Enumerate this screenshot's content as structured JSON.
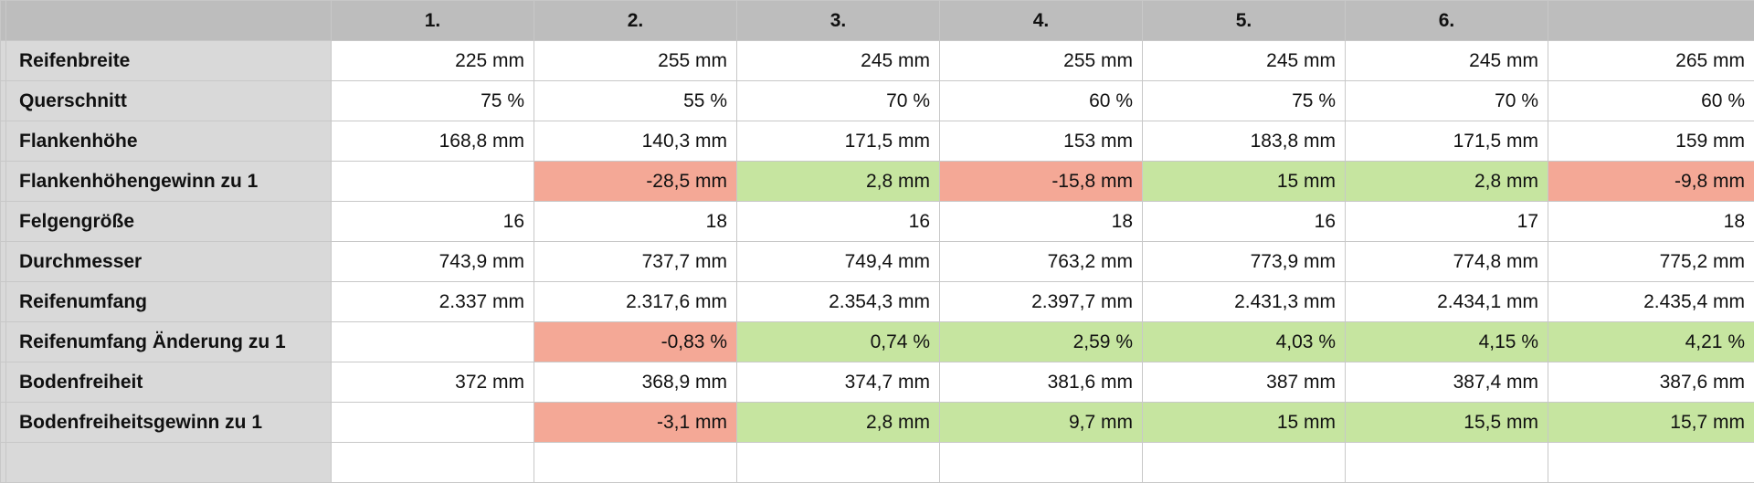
{
  "headers": [
    "",
    "1.",
    "2.",
    "3.",
    "4.",
    "5.",
    "6.",
    ""
  ],
  "rows": [
    {
      "label": "Reifenbreite",
      "cells": [
        "225 mm",
        "255 mm",
        "245 mm",
        "255 mm",
        "245 mm",
        "245 mm",
        "265 mm"
      ],
      "fill": [
        "",
        "",
        "",
        "",
        "",
        "",
        ""
      ]
    },
    {
      "label": "Querschnitt",
      "cells": [
        "75 %",
        "55 %",
        "70 %",
        "60 %",
        "75 %",
        "70 %",
        "60 %"
      ],
      "fill": [
        "",
        "",
        "",
        "",
        "",
        "",
        ""
      ]
    },
    {
      "label": "Flankenhöhe",
      "cells": [
        "168,8 mm",
        "140,3 mm",
        "171,5 mm",
        "153 mm",
        "183,8 mm",
        "171,5 mm",
        "159 mm"
      ],
      "fill": [
        "",
        "",
        "",
        "",
        "",
        "",
        ""
      ]
    },
    {
      "label": "Flankenhöhengewinn zu 1",
      "cells": [
        "",
        "-28,5 mm",
        "2,8 mm",
        "-15,8 mm",
        "15 mm",
        "2,8 mm",
        "-9,8 mm"
      ],
      "fill": [
        "",
        "red",
        "green",
        "red",
        "green",
        "green",
        "red"
      ]
    },
    {
      "label": "Felgengröße",
      "cells": [
        "16",
        "18",
        "16",
        "18",
        "16",
        "17",
        "18"
      ],
      "fill": [
        "",
        "",
        "",
        "",
        "",
        "",
        ""
      ]
    },
    {
      "label": "Durchmesser",
      "cells": [
        "743,9 mm",
        "737,7 mm",
        "749,4 mm",
        "763,2 mm",
        "773,9 mm",
        "774,8 mm",
        "775,2 mm"
      ],
      "fill": [
        "",
        "",
        "",
        "",
        "",
        "",
        ""
      ]
    },
    {
      "label": "Reifenumfang",
      "cells": [
        "2.337 mm",
        "2.317,6 mm",
        "2.354,3 mm",
        "2.397,7 mm",
        "2.431,3 mm",
        "2.434,1 mm",
        "2.435,4 mm"
      ],
      "fill": [
        "",
        "",
        "",
        "",
        "",
        "",
        ""
      ]
    },
    {
      "label": "Reifenumfang Änderung zu 1",
      "cells": [
        "",
        "-0,83 %",
        "0,74 %",
        "2,59 %",
        "4,03 %",
        "4,15 %",
        "4,21 %"
      ],
      "fill": [
        "",
        "red",
        "green",
        "green",
        "green",
        "green",
        "green"
      ]
    },
    {
      "label": "Bodenfreiheit",
      "cells": [
        "372 mm",
        "368,9 mm",
        "374,7 mm",
        "381,6 mm",
        "387 mm",
        "387,4 mm",
        "387,6 mm"
      ],
      "fill": [
        "",
        "",
        "",
        "",
        "",
        "",
        ""
      ]
    },
    {
      "label": "Bodenfreiheitsgewinn zu 1",
      "cells": [
        "",
        "-3,1 mm",
        "2,8 mm",
        "9,7 mm",
        "15 mm",
        "15,5 mm",
        "15,7 mm"
      ],
      "fill": [
        "",
        "red",
        "green",
        "green",
        "green",
        "green",
        "green"
      ]
    }
  ],
  "colors": {
    "header": "#bdbdbd",
    "row_label": "#d9d9d9",
    "negative": "#f4a896",
    "positive": "#c6e5a0"
  }
}
